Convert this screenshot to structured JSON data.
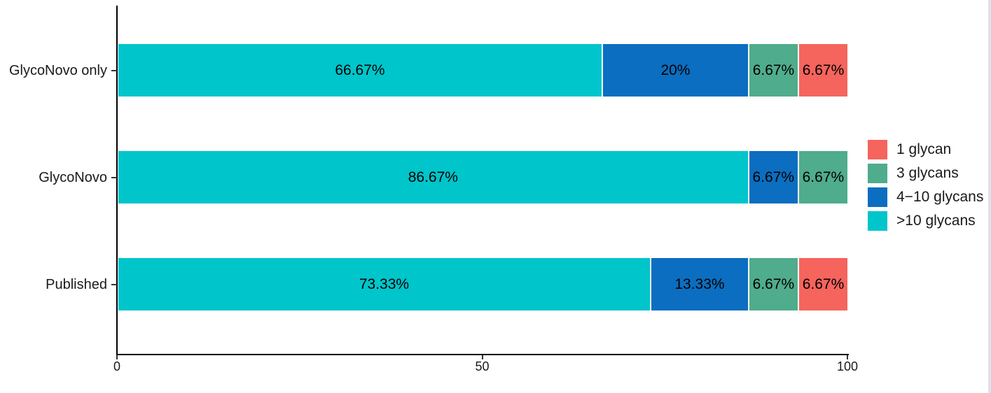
{
  "chart_data": {
    "type": "bar",
    "variant": "horizontal_stacked",
    "title": "",
    "xlabel": "",
    "ylabel": "",
    "categories": [
      "GlycoNovo only",
      "GlycoNovo",
      "Published"
    ],
    "series": [
      {
        "name": ">10 glycans",
        "color": "#00C5CB",
        "values": [
          66.67,
          86.67,
          73.33
        ],
        "labels": [
          "66.67%",
          "86.67%",
          "73.33%"
        ]
      },
      {
        "name": "4−10 glycans",
        "color": "#0B6EC0",
        "values": [
          20,
          6.67,
          13.33
        ],
        "labels": [
          "20%",
          "6.67%",
          "13.33%"
        ]
      },
      {
        "name": "3 glycans",
        "color": "#4FAC8C",
        "values": [
          6.67,
          6.67,
          6.67
        ],
        "labels": [
          "6.67%",
          "6.67%",
          "6.67%"
        ]
      },
      {
        "name": "1 glycan",
        "color": "#F5645D",
        "values": [
          6.67,
          0,
          6.67
        ],
        "labels": [
          "6.67%",
          "",
          "6.67%"
        ]
      }
    ],
    "xlim": [
      0,
      100
    ],
    "x_ticks": [
      {
        "value": 0,
        "label": "0"
      },
      {
        "value": 50,
        "label": "50"
      },
      {
        "value": 100,
        "label": "100"
      }
    ],
    "grid": false,
    "legend_position": "right",
    "legend": [
      {
        "label": "1 glycan",
        "color": "#F5645D"
      },
      {
        "label": "3 glycans",
        "color": "#4FAC8C"
      },
      {
        "label": "4−10 glycans",
        "color": "#0B6EC0"
      },
      {
        "label": ">10 glycans",
        "color": "#00C5CB"
      }
    ]
  },
  "window": {
    "right_edge_color": "#dbe2ec"
  }
}
